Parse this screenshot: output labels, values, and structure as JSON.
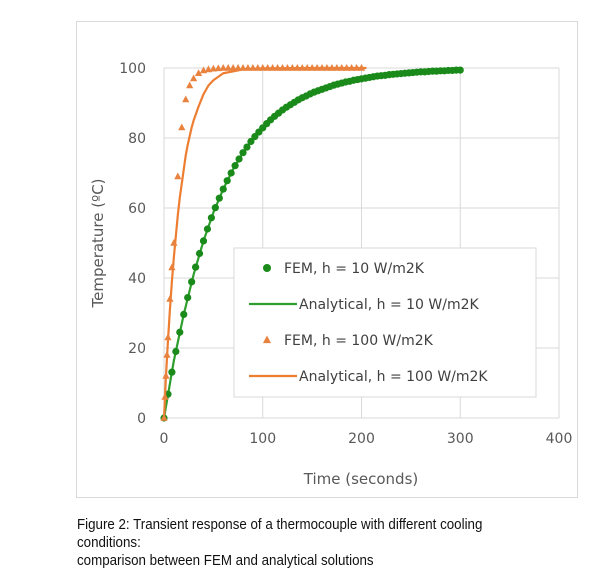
{
  "chart_data": {
    "type": "scatter",
    "title": "",
    "xlabel": "Time (seconds)",
    "ylabel": "Temperature (ºC)",
    "xlim": [
      0,
      400
    ],
    "ylim": [
      0,
      100
    ],
    "xticks": [
      0,
      100,
      200,
      300,
      400
    ],
    "yticks": [
      0,
      20,
      40,
      60,
      80,
      100
    ],
    "xtick_labels": [
      "0",
      "100",
      "200",
      "300",
      "400"
    ],
    "ytick_labels": [
      "0",
      "20",
      "40",
      "60",
      "80",
      "100"
    ],
    "grid": true,
    "legend_position": "center-right",
    "series": [
      {
        "name": "FEM, h = 10 W/m2K",
        "kind": "marker",
        "marker": "circle",
        "color": "#1a8a1a",
        "x": [
          0,
          4,
          8,
          12,
          16,
          20,
          24,
          28,
          32,
          36,
          40,
          44,
          48,
          52,
          56,
          60,
          64,
          68,
          72,
          76,
          80,
          84,
          88,
          92,
          96,
          100,
          104,
          108,
          112,
          116,
          120,
          124,
          128,
          132,
          136,
          140,
          144,
          148,
          152,
          156,
          160,
          164,
          168,
          172,
          176,
          180,
          184,
          188,
          192,
          196,
          200,
          204,
          208,
          212,
          216,
          220,
          224,
          228,
          232,
          236,
          240,
          244,
          248,
          252,
          256,
          260,
          264,
          268,
          272,
          276,
          280,
          284,
          288,
          292,
          296,
          300
        ],
        "y": [
          0,
          6.8,
          13.1,
          19,
          24.5,
          29.6,
          34.4,
          38.9,
          43.1,
          47,
          50.6,
          54,
          57.2,
          60.1,
          62.8,
          65.4,
          67.8,
          70,
          72.1,
          74,
          75.8,
          77.4,
          79,
          80.4,
          81.7,
          82.9,
          84.1,
          85.2,
          86.2,
          87.1,
          88,
          88.8,
          89.5,
          90.2,
          90.9,
          91.5,
          92,
          92.6,
          93.1,
          93.5,
          93.9,
          94.3,
          94.7,
          95.1,
          95.4,
          95.7,
          96,
          96.2,
          96.5,
          96.7,
          96.9,
          97.1,
          97.3,
          97.5,
          97.7,
          97.8,
          97.9,
          98.1,
          98.2,
          98.3,
          98.4,
          98.5,
          98.6,
          98.7,
          98.8,
          98.9,
          98.9,
          99,
          99.1,
          99.1,
          99.2,
          99.2,
          99.3,
          99.3,
          99.4,
          99.4
        ]
      },
      {
        "name": "Analytical, h = 10 W/m2K",
        "kind": "line",
        "color": "#2e9e2e",
        "x": [
          0,
          10,
          20,
          30,
          40,
          50,
          60,
          70,
          80,
          90,
          100,
          110,
          120,
          130,
          140,
          150,
          160,
          170,
          180,
          190,
          200,
          210,
          220,
          230,
          240,
          250,
          260,
          270,
          280,
          290,
          300
        ],
        "y": [
          0,
          16.4,
          29.6,
          41,
          50.6,
          58.7,
          65.4,
          71.1,
          75.8,
          79.8,
          82.9,
          85.7,
          88,
          89.9,
          91.5,
          92.8,
          93.9,
          94.9,
          95.7,
          96.4,
          96.9,
          97.4,
          97.8,
          98.2,
          98.4,
          98.7,
          98.9,
          99.1,
          99.2,
          99.3,
          99.4
        ]
      },
      {
        "name": "FEM, h = 100 W/m2K",
        "kind": "marker",
        "marker": "triangle",
        "color": "#e9823e",
        "x": [
          0,
          1,
          2,
          3,
          4,
          6,
          8,
          10,
          14,
          18,
          22,
          26,
          30,
          35,
          40,
          45,
          50,
          55,
          60,
          65,
          70,
          75,
          80,
          85,
          90,
          95,
          100,
          105,
          110,
          115,
          120,
          125,
          130,
          135,
          140,
          145,
          150,
          155,
          160,
          165,
          170,
          175,
          180,
          185,
          190,
          195,
          200
        ],
        "y": [
          0,
          6,
          12,
          18,
          23,
          34,
          43,
          50,
          69,
          83,
          91,
          95,
          97,
          98.5,
          99.3,
          99.6,
          99.8,
          99.9,
          100,
          100,
          100,
          100,
          100,
          100,
          100,
          100,
          100,
          100,
          100,
          100,
          100,
          100,
          100,
          100,
          100,
          100,
          100,
          100,
          100,
          100,
          100,
          100,
          100,
          100,
          100,
          100,
          100
        ]
      },
      {
        "name": "Analytical, h = 100 W/m2K",
        "kind": "line",
        "color": "#ed7d31",
        "x": [
          0,
          1,
          2,
          3,
          4,
          6,
          8,
          10,
          12,
          14,
          16,
          18,
          20,
          22,
          24,
          26,
          28,
          30,
          35,
          40,
          45,
          50,
          60,
          80,
          100,
          150,
          205
        ],
        "y": [
          0,
          6,
          12,
          17,
          22,
          31,
          39,
          46,
          52,
          58,
          63,
          67,
          71,
          75,
          78,
          80.5,
          83,
          85,
          89,
          92.5,
          95,
          96.5,
          98.5,
          99.6,
          99.9,
          100,
          100
        ]
      }
    ]
  },
  "caption": {
    "line1": "Figure 2: Transient response of a thermocouple with different cooling conditions:",
    "line2": "comparison between FEM and analytical solutions"
  }
}
